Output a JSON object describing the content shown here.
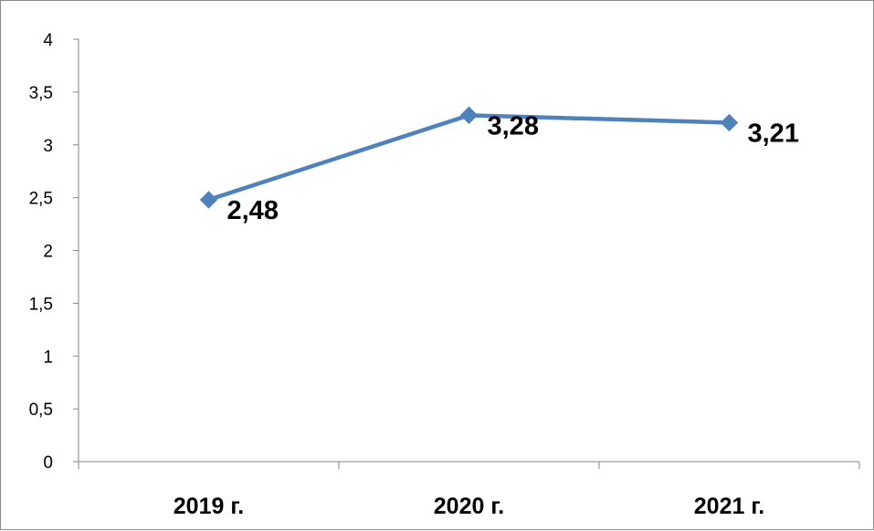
{
  "chart_data": {
    "type": "line",
    "title": "",
    "xlabel": "",
    "ylabel": "",
    "categories": [
      "2019 г.",
      "2020 г.",
      "2021 г."
    ],
    "series": [
      {
        "values": [
          2.48,
          3.28,
          3.21
        ],
        "data_labels": [
          "2,48",
          "3,28",
          "3,21"
        ]
      }
    ],
    "ylim": [
      0,
      4
    ],
    "y_ticks": [
      0,
      0.5,
      1,
      1.5,
      2,
      2.5,
      3,
      3.5,
      4
    ],
    "y_tick_labels": [
      "0",
      "0,5",
      "1",
      "1,5",
      "2",
      "2,5",
      "3",
      "3,5",
      "4"
    ],
    "grid": false,
    "legend": "none",
    "colors": {
      "series": "#4f81bd",
      "axis": "#868686"
    }
  }
}
